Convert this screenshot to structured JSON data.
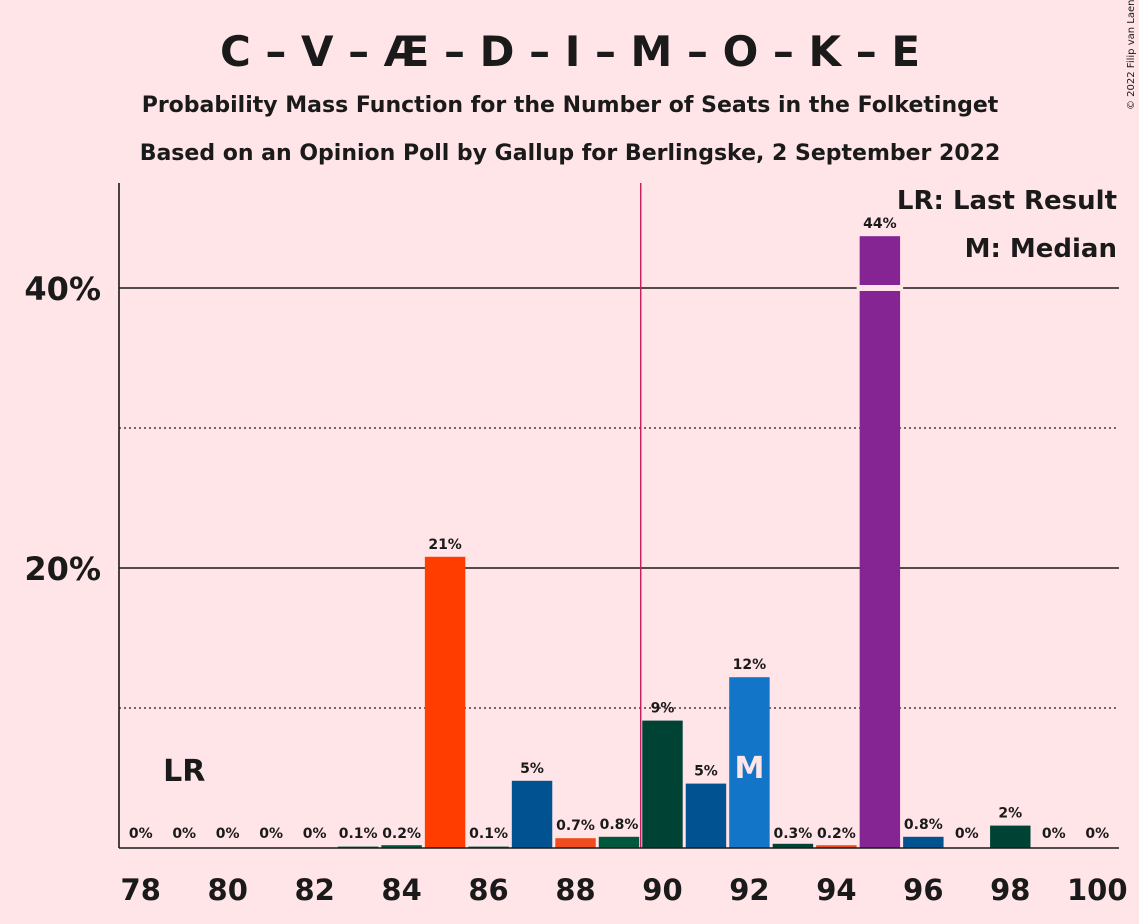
{
  "title": "C – V – Æ – D – I – M – O – K – E",
  "subtitle1": "Probability Mass Function for the Number of Seats in the Folketinget",
  "subtitle2": "Based on an Opinion Poll by Gallup for Berlingske, 2 September 2022",
  "copyright": "© 2022 Filip van Laenen",
  "legend": {
    "lr": "LR: Last Result",
    "m": "M: Median"
  },
  "markers": {
    "lr_text": "LR",
    "m_text": "M"
  },
  "chart_data": {
    "type": "bar",
    "title": "C – V – Æ – D – I – M – O – K – E",
    "xlabel": "",
    "ylabel": "",
    "x": [
      78,
      79,
      80,
      81,
      82,
      83,
      84,
      85,
      86,
      87,
      88,
      89,
      90,
      91,
      92,
      93,
      94,
      95,
      96,
      97,
      98,
      99,
      100
    ],
    "values": [
      0,
      0,
      0,
      0,
      0,
      0.1,
      0.2,
      20.8,
      0.1,
      4.8,
      0.7,
      0.8,
      9.1,
      4.6,
      12.2,
      0.3,
      0.2,
      43.7,
      0.8,
      0,
      1.6,
      0,
      0
    ],
    "labels": [
      "0%",
      "0%",
      "0%",
      "0%",
      "0%",
      "0.1%",
      "0.2%",
      "21%",
      "0.1%",
      "5%",
      "0.7%",
      "0.8%",
      "9%",
      "5%",
      "12%",
      "0.3%",
      "0.2%",
      "44%",
      "0.8%",
      "0%",
      "2%",
      "0%",
      "0%"
    ],
    "colors": [
      "#00583C",
      "#00583C",
      "#00583C",
      "#00583C",
      "#00583C",
      "#00583C",
      "#00583C",
      "#FF3D00",
      "#00583C",
      "#005291",
      "#F04D1E",
      "#00583C",
      "#004234",
      "#005291",
      "#1375C7",
      "#004234",
      "#F04D1E",
      "#842593",
      "#005291",
      "#00583C",
      "#004234",
      "#00583C",
      "#00583C"
    ],
    "xticks": [
      "78",
      "80",
      "82",
      "84",
      "86",
      "88",
      "90",
      "92",
      "94",
      "96",
      "98",
      "100"
    ],
    "yticks": [
      "20%",
      "40%"
    ],
    "ylim": [
      0,
      47.5
    ],
    "grid": "solid at 20% and 40%, dotted at 10% and 30%",
    "majority_line_between": [
      89,
      90
    ],
    "last_result_seat": 79,
    "median_seat": 92,
    "legend_position": "top-right"
  }
}
